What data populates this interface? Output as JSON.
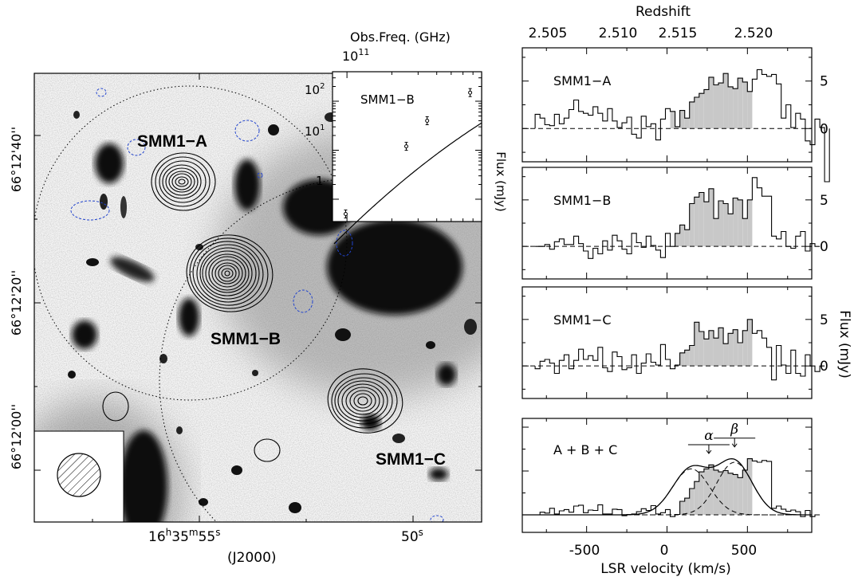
{
  "image_panel": {
    "dec_ticks": [
      "66°12'40''",
      "66°12'20''",
      "66°12'00''"
    ],
    "ra_ticks": [
      "16h35m55s",
      "50s"
    ],
    "ra_tick_parts": [
      {
        "base": "16",
        "h": "h",
        "mid": "35",
        "m": "m",
        "sec": "55",
        "s": "s"
      },
      {
        "base": "50",
        "s": "s"
      }
    ],
    "epoch": "(J2000)",
    "sources": [
      "SMM1-A",
      "SMM1-B",
      "SMM1-C"
    ],
    "source_labels": [
      "SMM1−A",
      "SMM1−B",
      "SMM1−C"
    ],
    "colors": {
      "contour": "#000000",
      "negative_contour": "#2244cc",
      "grayscale_sources": "#111111"
    }
  },
  "sed_inset": {
    "title": "SMM1−B",
    "top_axis_label": "Obs.Freq. (GHz)",
    "top_axis_tick": "10",
    "top_axis_tick_exp": "11",
    "y_ticks": [
      "10²",
      "10¹",
      "1"
    ],
    "y_tick_parts": [
      {
        "base": "10",
        "exp": "2"
      },
      {
        "base": "10",
        "exp": "1"
      },
      {
        "base": "1",
        "exp": ""
      }
    ],
    "y_label": "Flux (mJy)"
  },
  "spectra": {
    "redshift_label": "Redshift",
    "redshift_ticks": [
      "2.505",
      "2.510",
      "2.515",
      "2.520"
    ],
    "x_label": "LSR velocity (km/s)",
    "x_ticks": [
      "-500",
      "0",
      "500"
    ],
    "y_label": "Flux (mJy)",
    "panels": [
      {
        "name": "SMM1−A",
        "y_ticks": [
          "5",
          "0"
        ]
      },
      {
        "name": "SMM1−B",
        "y_ticks": [
          "5",
          "0"
        ]
      },
      {
        "name": "SMM1−C",
        "y_ticks": [
          "5",
          "0"
        ]
      },
      {
        "name": "A + B + C",
        "y_ticks": [],
        "components": [
          "α",
          "β"
        ]
      }
    ]
  },
  "chart_data": [
    {
      "type": "scatter",
      "title": "SMM1−B",
      "xlabel": "Obs.Freq. (GHz)",
      "ylabel": "Flux (mJy)",
      "yscale": "log",
      "xscale": "log",
      "ylim": [
        0.35,
        400
      ],
      "series": [
        {
          "x": [
            98,
            250,
            345,
            670
          ],
          "y": [
            0.5,
            12,
            40,
            150
          ]
        }
      ],
      "model_curve": true
    },
    {
      "type": "bar",
      "title": "SMM1−A",
      "xlabel": "LSR velocity (km/s)",
      "ylabel": "Flux (mJy)",
      "xlim": [
        -900,
        900
      ],
      "ylim": [
        -3.5,
        8.5
      ],
      "bin_start": -820,
      "bin_width": 30,
      "values": [
        1.5,
        1.1,
        0.4,
        0.3,
        1.5,
        0.5,
        1.1,
        2.0,
        3.0,
        1.8,
        1.6,
        1.4,
        2.3,
        1.6,
        0.8,
        2.1,
        0.8,
        0.1,
        0.6,
        1.2,
        -0.6,
        -1.0,
        1.3,
        0.2,
        0.5,
        -1.2,
        1.0,
        2.1,
        1.8,
        0.2,
        1.9,
        1.1,
        2.8,
        3.3,
        3.7,
        4.1,
        5.4,
        4.6,
        4.8,
        5.8,
        4.4,
        4.2,
        5.3,
        4.9,
        3.9,
        5.2,
        6.2,
        5.7,
        5.5,
        5.7,
        4.7,
        1.1,
        2.5,
        0.1,
        1.6,
        1.0,
        -1.3,
        -1.7,
        1.0,
        0.1,
        -5.6
      ]
    },
    {
      "type": "bar",
      "title": "SMM1−B",
      "xlabel": "LSR velocity (km/s)",
      "ylabel": "Flux (mJy)",
      "xlim": [
        -900,
        900
      ],
      "ylim": [
        -3.5,
        8.5
      ],
      "bin_start": -820,
      "bin_width": 30,
      "values": [
        0.0,
        0.0,
        0.2,
        -0.3,
        0.5,
        0.8,
        0.2,
        0.2,
        1.1,
        0.3,
        -0.5,
        -1.3,
        -0.2,
        -0.8,
        0.6,
        -0.4,
        1.2,
        0.6,
        -0.3,
        -0.8,
        1.4,
        0.4,
        -0.1,
        1.1,
        0.1,
        -0.4,
        -1.2,
        1.4,
        0.0,
        1.4,
        2.3,
        1.8,
        4.6,
        5.3,
        5.8,
        4.8,
        6.2,
        3.0,
        4.9,
        4.6,
        3.5,
        5.2,
        5.0,
        3.0,
        5.0,
        7.4,
        6.3,
        5.4,
        5.4,
        1.1,
        0.8,
        1.6,
        0.0,
        -0.2,
        1.1,
        1.6,
        -0.5,
        0.3,
        0.0
      ]
    },
    {
      "type": "bar",
      "title": "SMM1−C",
      "xlabel": "LSR velocity (km/s)",
      "ylabel": "Flux (mJy)",
      "xlim": [
        -900,
        900
      ],
      "ylim": [
        -3.5,
        8.5
      ],
      "bin_start": -820,
      "bin_width": 30,
      "values": [
        -0.3,
        0.5,
        0.7,
        0.3,
        -0.8,
        0.6,
        1.2,
        -0.3,
        0.6,
        1.8,
        0.7,
        1.1,
        0.6,
        2.0,
        -0.2,
        -0.6,
        1.5,
        1.0,
        -0.4,
        -0.2,
        1.2,
        -0.8,
        0.3,
        1.3,
        0.4,
        0.1,
        2.3,
        0.7,
        -0.3,
        0.1,
        1.4,
        1.7,
        2.2,
        4.7,
        3.7,
        2.9,
        3.8,
        3.0,
        4.1,
        2.4,
        3.5,
        3.9,
        2.5,
        3.8,
        5.0,
        3.5,
        3.8,
        3.0,
        2.0,
        -1.5,
        2.2,
        0.1,
        -0.8,
        1.7,
        -0.8,
        -1.1,
        1.2,
        0.0,
        -0.6,
        0.0
      ]
    },
    {
      "type": "bar",
      "title": "A + B + C",
      "xlabel": "LSR velocity (km/s)",
      "ylabel": "Flux (mJy)",
      "xlim": [
        -900,
        900
      ],
      "ylim": [
        -4,
        22
      ],
      "bin_start": -820,
      "bin_width": 30,
      "values": [
        0.0,
        0.6,
        0.4,
        1.5,
        0.2,
        0.9,
        1.2,
        0.6,
        2.0,
        2.2,
        0.5,
        1.1,
        1.0,
        2.3,
        0.2,
        0.2,
        1.3,
        1.2,
        -0.2,
        0.1,
        0.2,
        0.7,
        1.4,
        1.0,
        2.1,
        0.2,
        0.5,
        1.2,
        -0.4,
        0.1,
        3.1,
        3.8,
        6.0,
        7.6,
        9.8,
        10.5,
        11.4,
        10.2,
        9.8,
        10.1,
        9.5,
        9.2,
        8.5,
        10.2,
        12.8,
        12.3,
        12.0,
        12.4,
        12.2,
        1.5,
        2.0,
        1.3,
        0.8,
        1.1,
        0.7,
        -0.4,
        1.0,
        -0.4,
        0.0
      ],
      "components": [
        {
          "name": "α",
          "center": 150,
          "sigma": 115,
          "amplitude": 10.5
        },
        {
          "name": "β",
          "center": 420,
          "sigma": 110,
          "amplitude": 12.0
        }
      ]
    }
  ]
}
